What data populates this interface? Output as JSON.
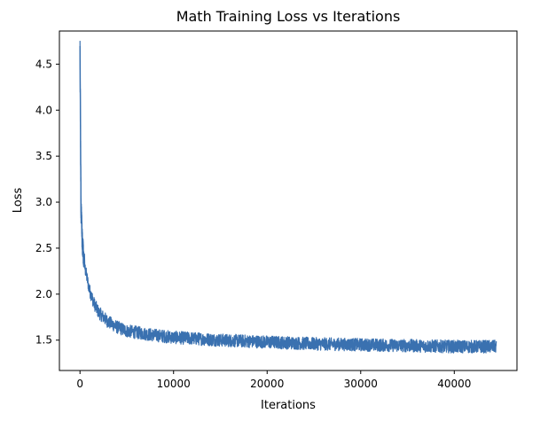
{
  "chart_data": {
    "type": "line",
    "title": "Math Training Loss vs Iterations",
    "xlabel": "Iterations",
    "ylabel": "Loss",
    "xlim": [
      -2200,
      46700
    ],
    "ylim": [
      1.17,
      4.86
    ],
    "xticks": [
      0,
      10000,
      20000,
      30000,
      40000
    ],
    "xtick_labels": [
      "0",
      "10000",
      "20000",
      "30000",
      "40000"
    ],
    "yticks": [
      1.5,
      2.0,
      2.5,
      3.0,
      3.5,
      4.0,
      4.5
    ],
    "ytick_labels": [
      "1.5",
      "2.0",
      "2.5",
      "3.0",
      "3.5",
      "4.0",
      "4.5"
    ],
    "grid": false,
    "legend": "none",
    "series": [
      {
        "color": "#3a71b0",
        "x_range": [
          0,
          44500
        ],
        "approx_x": [
          0,
          100,
          250,
          500,
          1000,
          1500,
          2000,
          3000,
          4000,
          5000,
          7500,
          10000,
          15000,
          20000,
          25000,
          30000,
          35000,
          40000,
          44500
        ],
        "approx_y": [
          4.71,
          2.95,
          2.55,
          2.3,
          2.05,
          1.9,
          1.8,
          1.7,
          1.64,
          1.6,
          1.56,
          1.53,
          1.5,
          1.48,
          1.46,
          1.45,
          1.44,
          1.43,
          1.43
        ],
        "noise_amplitude": 0.07
      }
    ]
  }
}
